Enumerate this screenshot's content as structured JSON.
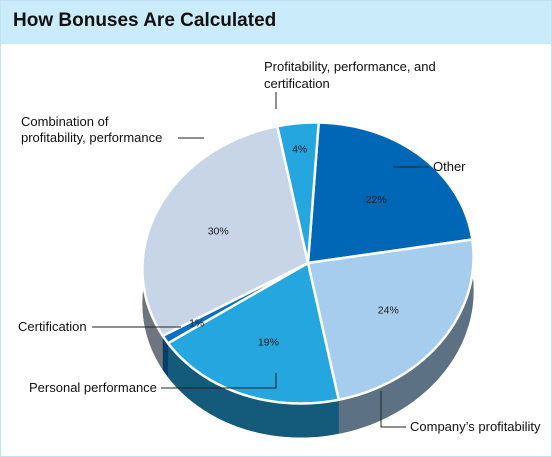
{
  "chart_data": {
    "type": "pie",
    "title": "How Bonuses Are Calculated",
    "slices": [
      {
        "label": "Other",
        "value": 22,
        "value_label": "22%",
        "color": "#0067b6",
        "name": "slice-other"
      },
      {
        "label": "Company's profitability",
        "value": 24,
        "value_label": "24%",
        "color": "#a7cdee",
        "name": "slice-company-profitability"
      },
      {
        "label": "Personal performance",
        "value": 19,
        "value_label": "19%",
        "color": "#25a6df",
        "name": "slice-personal-performance"
      },
      {
        "label": "Certification",
        "value": 1,
        "value_label": "1%",
        "color": "#0a6ec4",
        "name": "slice-certification"
      },
      {
        "label": "Combination of profitability, performance",
        "value": 30,
        "value_label": "30%",
        "color": "#c8d5e6",
        "name": "slice-combination"
      },
      {
        "label": "Profitability, performance, and certification",
        "value": 4,
        "value_label": "4%",
        "color": "#25a6df",
        "name": "slice-profit-perf-cert"
      }
    ],
    "legend": "none",
    "style": "3d-tilted"
  },
  "labels": {
    "other": "Other",
    "company": "Company’s profitability",
    "personal": "Personal performance",
    "certification": "Certification",
    "combination_line1": "Combination of",
    "combination_line2": "profitability, performance",
    "ppc_line1": "Profitability, performance, and",
    "ppc_line2": "certification"
  }
}
